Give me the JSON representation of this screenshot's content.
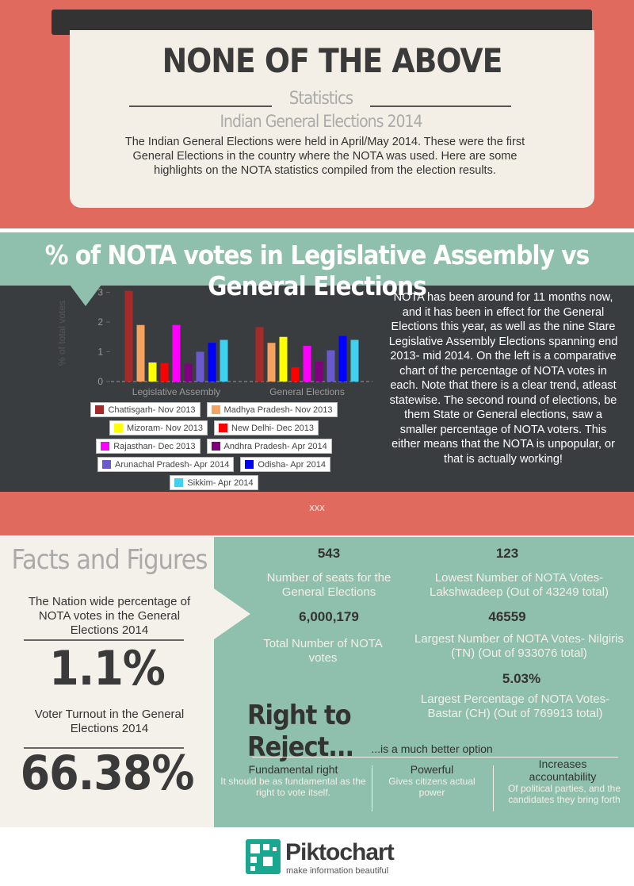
{
  "header": {
    "title": "NONE OF THE ABOVE",
    "subtitle": "Statistics",
    "subtitle2": "Indian General Elections 2014",
    "intro": "The Indian General Elections were held in April/May 2014. These were the first General Elections in the country where the NOTA was used. Here are some highlights on the NOTA statistics compiled from the election results."
  },
  "section_title": "% of NOTA votes in Legislative Assembly vs General Elections",
  "chart_data": {
    "type": "bar",
    "y_label": "% of total votes",
    "categories": [
      "Legislative Assembly",
      "General Elections"
    ],
    "series": [
      {
        "name": "Chattisgarh- Nov 2013",
        "color": "#a52a2a",
        "values": [
          3.05,
          1.83
        ]
      },
      {
        "name": "Madhya Pradesh- Nov 2013",
        "color": "#f4a460",
        "values": [
          1.9,
          1.3
        ]
      },
      {
        "name": "Mizoram- Nov 2013",
        "color": "#ffff00",
        "values": [
          0.64,
          1.5
        ]
      },
      {
        "name": "New Delhi- Dec 2013",
        "color": "#ff0000",
        "values": [
          0.62,
          0.48
        ]
      },
      {
        "name": "Rajasthan- Dec 2013",
        "color": "#ff00ff",
        "values": [
          1.9,
          1.2
        ]
      },
      {
        "name": "Andhra Pradesh- Apr 2014",
        "color": "#800080",
        "values": [
          0.6,
          0.67
        ]
      },
      {
        "name": "Arunachal Pradesh- Apr 2014",
        "color": "#6a5acd",
        "values": [
          1.0,
          1.05
        ]
      },
      {
        "name": "Odisha- Apr 2014",
        "color": "#0000ff",
        "values": [
          1.3,
          1.53
        ]
      },
      {
        "name": "Sikkim- Apr 2014",
        "color": "#40d0f0",
        "values": [
          1.4,
          1.4
        ]
      }
    ],
    "ylim": [
      0,
      3.2
    ],
    "yticks": [
      0,
      1,
      2,
      3
    ],
    "grid": false
  },
  "chart_text": "NOTA has been around for 11 months now, and it has been in effect for the General Elections this year, as well as the nine Stare Legislative Assembly Elections spanning end 2013- mid 2014. On the left is a comparative chart of the percentage of NOTA votes in each. Note that there is a clear trend, atleast statewise. The second round of elections, be them State or General elections, saw a smaller percentage of NOTA voters. This either means that the NOTA is unpopular, or that is actually working!",
  "divider": "xxx",
  "facts": {
    "title": "Facts and Figures",
    "items": [
      {
        "label": "The Nation wide percentage of NOTA votes in the General Elections 2014",
        "value": "1.1%"
      },
      {
        "label": "Voter Turnout in the General Elections 2014",
        "value": "66.38%"
      }
    ]
  },
  "stats": [
    {
      "value": "543",
      "label": "Number of seats for the General Elections"
    },
    {
      "value": "123",
      "label": "Lowest Number of NOTA Votes- Lakshwadeep (Out of 43249 total)"
    },
    {
      "value": "6,000,179",
      "label": "Total Number of NOTA votes"
    },
    {
      "value": "46559",
      "label": "Largest Number of NOTA Votes- Nilgiris (TN) (Out of 933076 total)"
    },
    {
      "value": "5.03%",
      "label": "Largest Percentage of NOTA Votes- Bastar (CH) (Out of 769913 total)"
    }
  ],
  "reject": {
    "title": "Right to Reject...",
    "subtitle": "...is a much better option",
    "points": [
      {
        "heading": "Fundamental right",
        "text": "It should be as fundamental as the right to vote itself."
      },
      {
        "heading": "Powerful",
        "text": "Gives citizens actual power"
      },
      {
        "heading": "Increases accountability",
        "text": "Of political parties, and the candidates they bring forth"
      }
    ]
  },
  "footer": {
    "brand": "Piktochart",
    "tagline": "make information beautiful"
  }
}
